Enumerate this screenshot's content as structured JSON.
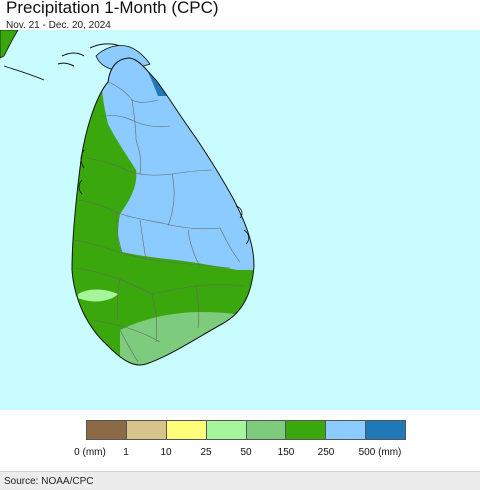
{
  "header": {
    "title": "Precipitation 1-Month (CPC)",
    "subtitle": "Nov. 21 - Dec. 20, 2024"
  },
  "colors": {
    "ocean": "#c9fcff",
    "mainland_india": "#3aa80c",
    "boundary": "#666666",
    "coast": "#111111"
  },
  "legend": {
    "colors": [
      "#8b6a45",
      "#d6c48a",
      "#ffff7a",
      "#a5f59a",
      "#7dcc7d",
      "#3aa80c",
      "#8ccbff",
      "#1f78b8"
    ],
    "labels": [
      "0 (mm)",
      "1",
      "10",
      "25",
      "50",
      "150",
      "250",
      "500 (mm)"
    ]
  },
  "footer": {
    "source": "Source: NOAA/CPC"
  }
}
